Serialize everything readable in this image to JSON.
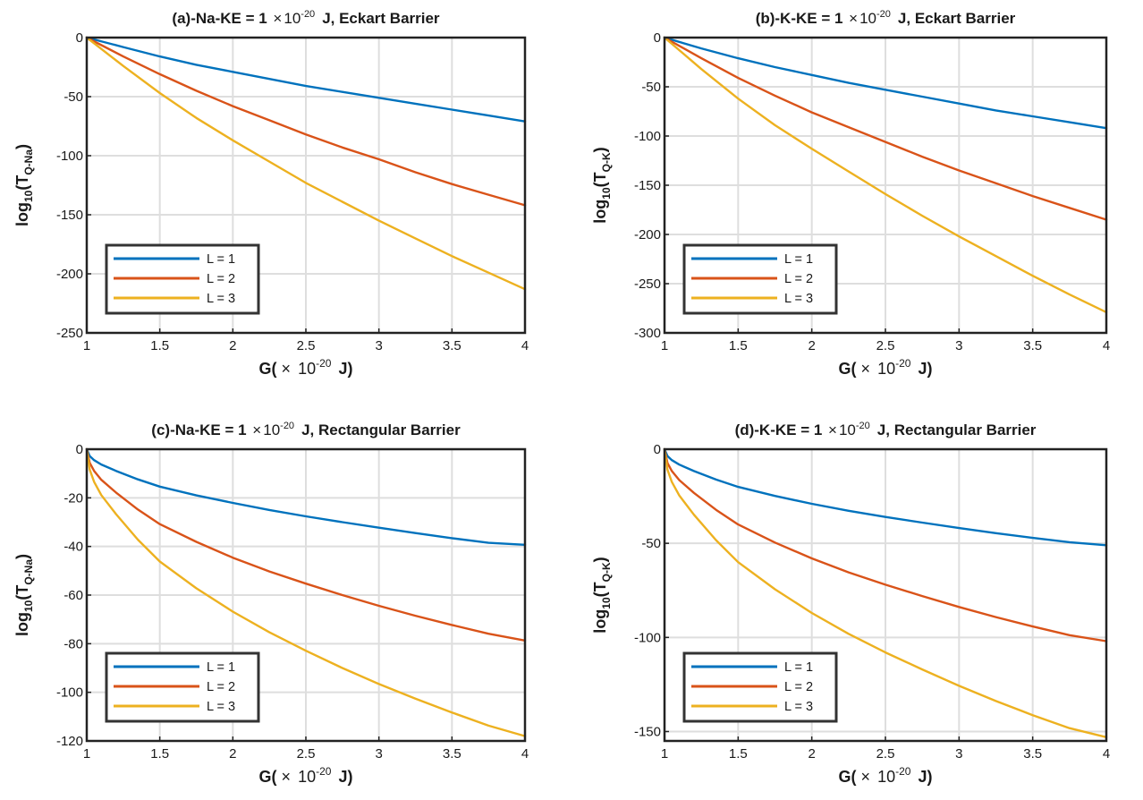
{
  "colors": {
    "L1": "#0072bd",
    "L2": "#d95319",
    "L3": "#edb120"
  },
  "chart_data": [
    {
      "type": "line",
      "title_main": "(a)-Na-KE  =  1",
      "title_times": "×",
      "title_base": "10",
      "title_exp": "-20",
      "title_tail": "J,  Eckart  Barrier",
      "ylabel_main": "log",
      "ylabel_sub1": "10",
      "ylabel_mid": "(T",
      "ylabel_sub2": "Q-Na",
      "ylabel_end": ")",
      "xlabel_main": "G(",
      "xlabel_times": "×",
      "xlabel_base": "10",
      "xlabel_exp": "-20",
      "xlabel_tail": "J)",
      "xlim": [
        1,
        4
      ],
      "ylim": [
        -250,
        0
      ],
      "xticks": [
        1,
        1.5,
        2,
        2.5,
        3,
        3.5,
        4
      ],
      "xtick_labels": [
        "1",
        "1.5",
        "2",
        "2.5",
        "3",
        "3.5",
        "4"
      ],
      "yticks": [
        -250,
        -200,
        -150,
        -100,
        -50,
        0
      ],
      "ytick_labels": [
        "-250",
        "-200",
        "-150",
        "-100",
        "-50",
        "0"
      ],
      "grid": true,
      "legend_position": "bottom-left",
      "x": [
        1,
        1.25,
        1.5,
        1.75,
        2,
        2.25,
        2.5,
        2.75,
        3,
        3.25,
        3.5,
        3.75,
        4
      ],
      "series": [
        {
          "name": "L = 1",
          "color_key": "L1",
          "values": [
            0,
            -8,
            -16,
            -23,
            -29,
            -35,
            -41,
            -46,
            -51,
            -56,
            -61,
            -66,
            -71
          ]
        },
        {
          "name": "L = 2",
          "color_key": "L2",
          "values": [
            0,
            -16,
            -31,
            -45,
            -58,
            -70,
            -82,
            -93,
            -103,
            -114,
            -124,
            -133,
            -142
          ]
        },
        {
          "name": "L = 3",
          "color_key": "L3",
          "values": [
            0,
            -24,
            -47,
            -68,
            -87,
            -105,
            -123,
            -139,
            -155,
            -170,
            -185,
            -199,
            -213
          ]
        }
      ]
    },
    {
      "type": "line",
      "title_main": "(b)-K-KE  =  1",
      "title_times": "×",
      "title_base": "10",
      "title_exp": "-20",
      "title_tail": "J,  Eckart  Barrier",
      "ylabel_main": "log",
      "ylabel_sub1": "10",
      "ylabel_mid": "(T",
      "ylabel_sub2": "Q-K",
      "ylabel_end": ")",
      "xlabel_main": "G(",
      "xlabel_times": "×",
      "xlabel_base": "10",
      "xlabel_exp": "-20",
      "xlabel_tail": "J)",
      "xlim": [
        1,
        4
      ],
      "ylim": [
        -300,
        0
      ],
      "xticks": [
        1,
        1.5,
        2,
        2.5,
        3,
        3.5,
        4
      ],
      "xtick_labels": [
        "1",
        "1.5",
        "2",
        "2.5",
        "3",
        "3.5",
        "4"
      ],
      "yticks": [
        -300,
        -250,
        -200,
        -150,
        -100,
        -50,
        0
      ],
      "ytick_labels": [
        "-300",
        "-250",
        "-200",
        "-150",
        "-100",
        "-50",
        "0"
      ],
      "grid": true,
      "legend_position": "bottom-left",
      "x": [
        1,
        1.25,
        1.5,
        1.75,
        2,
        2.25,
        2.5,
        2.75,
        3,
        3.25,
        3.5,
        3.75,
        4
      ],
      "series": [
        {
          "name": "L = 1",
          "color_key": "L1",
          "values": [
            0,
            -11,
            -21,
            -30,
            -38,
            -46,
            -53,
            -60,
            -67,
            -74,
            -80,
            -86,
            -92
          ]
        },
        {
          "name": "L = 2",
          "color_key": "L2",
          "values": [
            0,
            -21,
            -41,
            -59,
            -76,
            -91,
            -106,
            -121,
            -135,
            -148,
            -161,
            -173,
            -185
          ]
        },
        {
          "name": "L = 3",
          "color_key": "L3",
          "values": [
            0,
            -32,
            -62,
            -89,
            -113,
            -136,
            -159,
            -181,
            -202,
            -222,
            -242,
            -261,
            -279
          ]
        }
      ]
    },
    {
      "type": "line",
      "title_main": "(c)-Na-KE  =  1",
      "title_times": "×",
      "title_base": "10",
      "title_exp": "-20",
      "title_tail": "J,  Rectangular  Barrier",
      "ylabel_main": "log",
      "ylabel_sub1": "10",
      "ylabel_mid": "(T",
      "ylabel_sub2": "Q-Na",
      "ylabel_end": ")",
      "xlabel_main": "G(",
      "xlabel_times": "×",
      "xlabel_base": "10",
      "xlabel_exp": "-20",
      "xlabel_tail": "J)",
      "xlim": [
        1,
        4
      ],
      "ylim": [
        -120,
        0
      ],
      "xticks": [
        1,
        1.5,
        2,
        2.5,
        3,
        3.5,
        4
      ],
      "xtick_labels": [
        "1",
        "1.5",
        "2",
        "2.5",
        "3",
        "3.5",
        "4"
      ],
      "yticks": [
        -120,
        -100,
        -80,
        -60,
        -40,
        -20,
        0
      ],
      "ytick_labels": [
        "-120",
        "-100",
        "-80",
        "-60",
        "-40",
        "-20",
        "0"
      ],
      "grid": true,
      "legend_position": "bottom-left",
      "x": [
        1,
        1.02,
        1.05,
        1.1,
        1.2,
        1.35,
        1.5,
        1.75,
        2,
        2.25,
        2.5,
        2.75,
        3,
        3.25,
        3.5,
        3.75,
        4
      ],
      "series": [
        {
          "name": "L = 1",
          "color_key": "L1",
          "values": [
            0,
            -2.8,
            -4.5,
            -6.3,
            -8.9,
            -12.4,
            -15.4,
            -19.0,
            -22.1,
            -25,
            -27.6,
            -30,
            -32.3,
            -34.5,
            -36.6,
            -38.5,
            -39.3
          ]
        },
        {
          "name": "L = 2",
          "color_key": "L2",
          "values": [
            0,
            -5.6,
            -8.9,
            -12.6,
            -17.8,
            -24.8,
            -30.8,
            -38.1,
            -44.6,
            -50.3,
            -55.3,
            -60,
            -64.4,
            -68.5,
            -72.3,
            -75.9,
            -78.7
          ]
        },
        {
          "name": "L = 3",
          "color_key": "L3",
          "values": [
            0,
            -8.4,
            -13.4,
            -18.9,
            -26.7,
            -37.2,
            -46.2,
            -57.2,
            -66.8,
            -75.3,
            -82.9,
            -90,
            -96.6,
            -102.6,
            -108.3,
            -113.7,
            -118
          ]
        }
      ]
    },
    {
      "type": "line",
      "title_main": "(d)-K-KE  =  1",
      "title_times": "×",
      "title_base": "10",
      "title_exp": "-20",
      "title_tail": "J,  Rectangular  Barrier",
      "ylabel_main": "log",
      "ylabel_sub1": "10",
      "ylabel_mid": "(T",
      "ylabel_sub2": "Q-K",
      "ylabel_end": ")",
      "xlabel_main": "G(",
      "xlabel_times": "×",
      "xlabel_base": "10",
      "xlabel_exp": "-20",
      "xlabel_tail": "J)",
      "xlim": [
        1,
        4
      ],
      "ylim": [
        -155,
        0
      ],
      "xticks": [
        1,
        1.5,
        2,
        2.5,
        3,
        3.5,
        4
      ],
      "xtick_labels": [
        "1",
        "1.5",
        "2",
        "2.5",
        "3",
        "3.5",
        "4"
      ],
      "yticks": [
        -150,
        -100,
        -50,
        0
      ],
      "ytick_labels": [
        "-150",
        "-100",
        "-50",
        "0"
      ],
      "grid": true,
      "legend_position": "bottom-left",
      "x": [
        1,
        1.02,
        1.05,
        1.1,
        1.2,
        1.35,
        1.5,
        1.75,
        2,
        2.25,
        2.5,
        2.75,
        3,
        3.25,
        3.5,
        3.75,
        4
      ],
      "series": [
        {
          "name": "L = 1",
          "color_key": "L1",
          "values": [
            0,
            -3.6,
            -5.8,
            -8.2,
            -11.6,
            -16.1,
            -20,
            -24.8,
            -29,
            -32.7,
            -36,
            -39,
            -41.9,
            -44.6,
            -47.1,
            -49.4,
            -51
          ]
        },
        {
          "name": "L = 2",
          "color_key": "L2",
          "values": [
            0,
            -7.3,
            -11.6,
            -16.4,
            -23.2,
            -32.2,
            -40,
            -49.6,
            -58,
            -65.4,
            -72,
            -78,
            -83.8,
            -89.2,
            -94.2,
            -98.8,
            -102
          ]
        },
        {
          "name": "L = 3",
          "color_key": "L3",
          "values": [
            0,
            -10.9,
            -17.4,
            -24.6,
            -34.8,
            -48.3,
            -60,
            -74.4,
            -87,
            -98.1,
            -108,
            -117,
            -125.7,
            -133.8,
            -141.3,
            -148.2,
            -153
          ]
        }
      ]
    }
  ]
}
